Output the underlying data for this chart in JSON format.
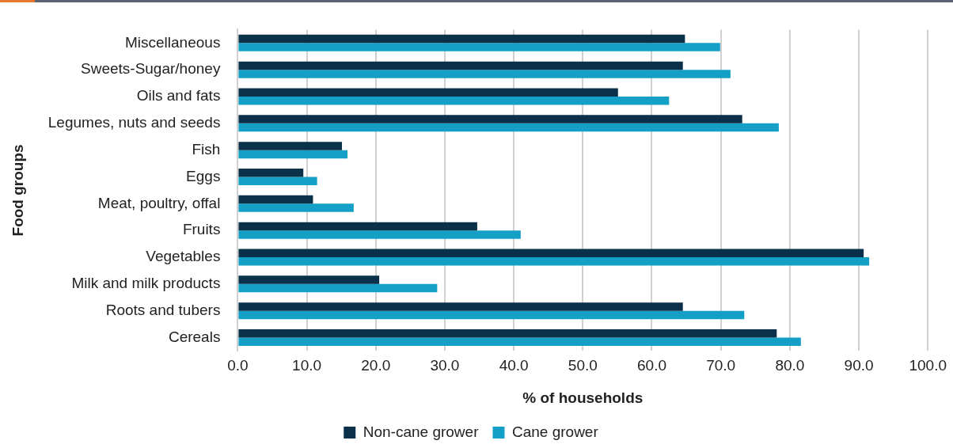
{
  "chart_data": {
    "type": "bar",
    "orientation": "horizontal",
    "xlabel": "% of households",
    "ylabel": "Food groups",
    "categories": [
      "Miscellaneous",
      "Sweets-Sugar/honey",
      "Oils and fats",
      "Legumes, nuts and seeds",
      "Fish",
      "Eggs",
      "Meat, poultry, offal",
      "Fruits",
      "Vegetables",
      "Milk and milk products",
      "Roots and tubers",
      "Cereals"
    ],
    "series": [
      {
        "name": "Non-cane grower",
        "color": "#0b3049",
        "values": [
          64.8,
          64.5,
          55.1,
          73.1,
          15.1,
          9.5,
          10.9,
          34.7,
          90.7,
          20.5,
          64.5,
          78.1
        ]
      },
      {
        "name": "Cane grower",
        "color": "#14a0c6",
        "values": [
          69.9,
          71.4,
          62.5,
          78.4,
          15.9,
          11.5,
          16.8,
          41.0,
          91.5,
          28.9,
          73.4,
          81.6
        ]
      }
    ],
    "xlim": [
      0,
      100
    ],
    "xticks": [
      {
        "value": 0,
        "label": "0.0"
      },
      {
        "value": 10,
        "label": "10.0"
      },
      {
        "value": 20,
        "label": "20.0"
      },
      {
        "value": 30,
        "label": "30.0"
      },
      {
        "value": 40,
        "label": "40.0"
      },
      {
        "value": 50,
        "label": "50.0"
      },
      {
        "value": 60,
        "label": "60.0"
      },
      {
        "value": 70,
        "label": "70.0"
      },
      {
        "value": 80,
        "label": "80.0"
      },
      {
        "value": 90,
        "label": "90.0"
      },
      {
        "value": 100,
        "label": "100.0"
      }
    ],
    "grid": "x",
    "legend": "bottom"
  }
}
